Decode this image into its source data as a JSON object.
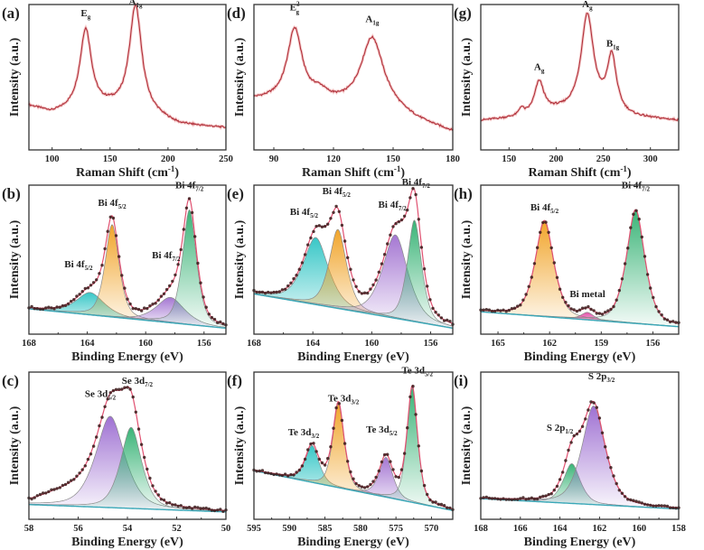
{
  "chart_data": [
    {
      "id": "a",
      "panel_label": "(a)",
      "type": "line",
      "kind": "raman",
      "xlabel": "Raman Shift (cm",
      "xlabel_sup": "-1",
      "xlabel_tail": ")",
      "ylabel": "Intensity (a.u.)",
      "xlim": [
        80,
        250
      ],
      "ylim": [
        0,
        1.0
      ],
      "reversed": false,
      "xticks": [
        100,
        150,
        200,
        250
      ],
      "baseline": [
        [
          80,
          0.3
        ],
        [
          100,
          0.25
        ],
        [
          120,
          0.27
        ],
        [
          150,
          0.28
        ],
        [
          190,
          0.22
        ],
        [
          210,
          0.17
        ],
        [
          250,
          0.15
        ]
      ],
      "peaks": [
        {
          "center": 129,
          "height": 0.55,
          "width": 6
        },
        {
          "center": 172,
          "height": 0.74,
          "width": 6.5
        }
      ],
      "labels": [
        {
          "text": "E",
          "sub": "g",
          "sup": "",
          "x": 129,
          "y": 0.92
        },
        {
          "text": "A",
          "sub": "1g",
          "sup": "",
          "x": 172,
          "y": 1.0
        }
      ]
    },
    {
      "id": "d",
      "panel_label": "(d)",
      "type": "line",
      "kind": "raman",
      "xlabel": "Raman Shift (cm",
      "xlabel_sup": "-1",
      "xlabel_tail": ")",
      "ylabel": "Intensity (a.u.)",
      "xlim": [
        80,
        180
      ],
      "ylim": [
        0,
        1.0
      ],
      "reversed": false,
      "xticks": [
        90,
        120,
        150,
        180
      ],
      "baseline": [
        [
          80,
          0.34
        ],
        [
          100,
          0.33
        ],
        [
          120,
          0.3
        ],
        [
          150,
          0.25
        ],
        [
          165,
          0.18
        ],
        [
          180,
          0.12
        ]
      ],
      "peaks": [
        {
          "center": 100.5,
          "height": 0.49,
          "width": 4.5
        },
        {
          "center": 113,
          "height": 0.06,
          "width": 5
        },
        {
          "center": 139.5,
          "height": 0.5,
          "width": 7
        }
      ],
      "labels": [
        {
          "text": "E",
          "sub": "g",
          "sup": "2",
          "x": 100.5,
          "y": 0.96
        },
        {
          "text": "A",
          "sub": "1g",
          "sup": "",
          "x": 139.5,
          "y": 0.88
        }
      ]
    },
    {
      "id": "g",
      "panel_label": "(g)",
      "type": "line",
      "kind": "raman",
      "xlabel": "Raman Shift (cm",
      "xlabel_sup": "-1",
      "xlabel_tail": ")",
      "ylabel": "Intensity (a.u.)",
      "xlim": [
        120,
        330
      ],
      "ylim": [
        0,
        1.0
      ],
      "reversed": false,
      "xticks": [
        150,
        200,
        250,
        300
      ],
      "baseline": [
        [
          120,
          0.2
        ],
        [
          160,
          0.22
        ],
        [
          200,
          0.26
        ],
        [
          240,
          0.26
        ],
        [
          280,
          0.22
        ],
        [
          330,
          0.2
        ]
      ],
      "peaks": [
        {
          "center": 163,
          "height": 0.05,
          "width": 3
        },
        {
          "center": 182,
          "height": 0.22,
          "width": 6
        },
        {
          "center": 233,
          "height": 0.66,
          "width": 8
        },
        {
          "center": 259,
          "height": 0.38,
          "width": 6
        }
      ],
      "labels": [
        {
          "text": "A",
          "sub": "g",
          "sup": "",
          "x": 182,
          "y": 0.55
        },
        {
          "text": "A",
          "sub": "g",
          "sup": "",
          "x": 233,
          "y": 0.98
        },
        {
          "text": "B",
          "sub": "1g",
          "sup": "",
          "x": 260,
          "y": 0.71
        }
      ]
    },
    {
      "id": "b",
      "panel_label": "(b)",
      "type": "area",
      "kind": "xps",
      "xlabel": "Binding Energy (eV)",
      "ylabel": "Intensity (a.u.)",
      "xlim": [
        168,
        154.5
      ],
      "ylim": [
        0,
        1.0
      ],
      "reversed": true,
      "xticks": [
        168,
        164,
        160,
        156
      ],
      "background": [
        [
          168,
          0.17
        ],
        [
          154.5,
          0.04
        ]
      ],
      "components": [
        {
          "name": "Bi 4f5/2 (minor)",
          "center": 163.8,
          "height": 0.15,
          "width": 0.9,
          "color": "#2ec4c4"
        },
        {
          "name": "Bi 4f5/2",
          "center": 162.3,
          "height": 0.62,
          "width": 0.45,
          "color": "#f0a020"
        },
        {
          "name": "Bi 4f7/2 (minor)",
          "center": 158.3,
          "height": 0.17,
          "width": 0.9,
          "color": "#a070d0"
        },
        {
          "name": "Bi 4f7/2",
          "center": 157.0,
          "height": 0.77,
          "width": 0.45,
          "color": "#30b070"
        }
      ],
      "labels": [
        {
          "text": "Bi 4f",
          "sub": "5/2",
          "sup": "",
          "x": 164.6,
          "y": 0.45
        },
        {
          "text": "Bi 4f",
          "sub": "5/2",
          "sup": "",
          "x": 162.3,
          "y": 0.86
        },
        {
          "text": "Bi 4f",
          "sub": "7/2",
          "sup": "",
          "x": 158.6,
          "y": 0.51
        },
        {
          "text": "Bi 4f",
          "sub": "7/2",
          "sup": "",
          "x": 157.0,
          "y": 0.98
        }
      ]
    },
    {
      "id": "e",
      "panel_label": "(e)",
      "type": "area",
      "kind": "xps",
      "xlabel": "Binding Energy (eV)",
      "ylabel": "Intensity (a.u.)",
      "xlim": [
        168,
        154.5
      ],
      "ylim": [
        0,
        1.0
      ],
      "reversed": true,
      "xticks": [
        168,
        164,
        160,
        156
      ],
      "background": [
        [
          168,
          0.27
        ],
        [
          154.5,
          0.04
        ]
      ],
      "components": [
        {
          "name": "Bi 4f5/2 (minor)",
          "center": 163.8,
          "height": 0.45,
          "width": 0.8,
          "color": "#2ec4c4"
        },
        {
          "name": "Bi 4f5/2",
          "center": 162.3,
          "height": 0.53,
          "width": 0.55,
          "color": "#f0a020"
        },
        {
          "name": "Bi 4f7/2 (minor)",
          "center": 158.4,
          "height": 0.56,
          "width": 0.8,
          "color": "#a070d0"
        },
        {
          "name": "Bi 4f7/2",
          "center": 157.1,
          "height": 0.68,
          "width": 0.45,
          "color": "#30b070"
        }
      ],
      "labels": [
        {
          "text": "Bi 4f",
          "sub": "5/2",
          "sup": "",
          "x": 164.6,
          "y": 0.8
        },
        {
          "text": "Bi 4f",
          "sub": "5/2",
          "sup": "",
          "x": 162.4,
          "y": 0.94
        },
        {
          "text": "Bi 4f",
          "sub": "7/2",
          "sup": "",
          "x": 158.6,
          "y": 0.85
        },
        {
          "text": "Bi 4f",
          "sub": "7/2",
          "sup": "",
          "x": 157.0,
          "y": 1.0
        }
      ]
    },
    {
      "id": "h",
      "panel_label": "(h)",
      "type": "area",
      "kind": "xps",
      "xlabel": "Binding Energy (eV)",
      "ylabel": "Intensity (a.u.)",
      "xlim": [
        166,
        154.5
      ],
      "ylim": [
        0,
        1.0
      ],
      "reversed": true,
      "xticks": [
        165,
        162,
        159,
        156
      ],
      "background": [
        [
          166,
          0.15
        ],
        [
          154.5,
          0.05
        ]
      ],
      "components": [
        {
          "name": "Bi 4f5/2",
          "center": 162.3,
          "height": 0.64,
          "width": 0.5,
          "color": "#f0a020"
        },
        {
          "name": "Bi metal",
          "center": 159.8,
          "height": 0.05,
          "width": 0.35,
          "color": "#e040a0"
        },
        {
          "name": "Bi 4f7/2",
          "center": 157.0,
          "height": 0.76,
          "width": 0.5,
          "color": "#30b070"
        }
      ],
      "labels": [
        {
          "text": "Bi 4f",
          "sub": "5/2",
          "sup": "",
          "x": 162.3,
          "y": 0.83
        },
        {
          "text": "Bi metal",
          "sub": "",
          "sup": "",
          "x": 159.8,
          "y": 0.25
        },
        {
          "text": "Bi 4f",
          "sub": "7/2",
          "sup": "",
          "x": 157.0,
          "y": 0.98
        }
      ]
    },
    {
      "id": "c",
      "panel_label": "(c)",
      "type": "area",
      "kind": "xps",
      "xlabel": "Binding Energy (eV)",
      "ylabel": "Intensity (a.u.)",
      "xlim": [
        58,
        50
      ],
      "ylim": [
        0,
        1.0
      ],
      "reversed": true,
      "xticks": [
        58,
        56,
        54,
        52,
        50
      ],
      "background": [
        [
          58,
          0.1
        ],
        [
          50,
          0.05
        ]
      ],
      "components": [
        {
          "name": "Se 3d5/2",
          "center": 54.7,
          "height": 0.62,
          "width": 0.55,
          "color": "#9a6ad0"
        },
        {
          "name": "Se 3d7/2",
          "center": 53.85,
          "height": 0.55,
          "width": 0.4,
          "color": "#30b070"
        }
      ],
      "tail": {
        "center": 56.2,
        "height": 0.1,
        "width": 1.1
      },
      "labels": [
        {
          "text": "Se 3d",
          "sub": "5/2",
          "sup": "",
          "x": 55.1,
          "y": 0.83
        },
        {
          "text": "Se 3d",
          "sub": "7/2",
          "sup": "",
          "x": 53.6,
          "y": 0.92
        }
      ]
    },
    {
      "id": "f",
      "panel_label": "(f)",
      "type": "area",
      "kind": "xps",
      "xlabel": "Binding Energy (eV)",
      "ylabel": "Intensity (a.u.)",
      "xlim": [
        595,
        567
      ],
      "ylim": [
        0,
        1.0
      ],
      "reversed": true,
      "xticks": [
        595,
        590,
        585,
        580,
        575,
        570
      ],
      "background": [
        [
          595,
          0.33
        ],
        [
          567,
          0.06
        ]
      ],
      "components": [
        {
          "name": "Te 3d3/2 (oxide)",
          "center": 586.8,
          "height": 0.25,
          "width": 0.9,
          "color": "#2ec4c4"
        },
        {
          "name": "Te 3d3/2",
          "center": 583.1,
          "height": 0.57,
          "width": 0.75,
          "color": "#f0a020"
        },
        {
          "name": "Te 3d5/2 (oxide)",
          "center": 576.4,
          "height": 0.27,
          "width": 0.9,
          "color": "#a070d0"
        },
        {
          "name": "Te 3d5/2",
          "center": 572.7,
          "height": 0.78,
          "width": 0.7,
          "color": "#30b070"
        }
      ],
      "labels": [
        {
          "text": "Te 3d",
          "sub": "3/2",
          "sup": "",
          "x": 588.0,
          "y": 0.57
        },
        {
          "text": "Te 3d",
          "sub": "3/2",
          "sup": "",
          "x": 582.4,
          "y": 0.8
        },
        {
          "text": "Te 3d",
          "sub": "5/2",
          "sup": "",
          "x": 577.0,
          "y": 0.59
        },
        {
          "text": "Te 3d",
          "sub": "5/2",
          "sup": "",
          "x": 572.0,
          "y": 0.99
        }
      ]
    },
    {
      "id": "i",
      "panel_label": "(i)",
      "type": "area",
      "kind": "xps",
      "xlabel": "Binding Energy (eV)",
      "ylabel": "Intensity (a.u.)",
      "xlim": [
        168,
        158
      ],
      "ylim": [
        0,
        1.0
      ],
      "reversed": true,
      "xticks": [
        168,
        166,
        164,
        162,
        160,
        158
      ],
      "background": [
        [
          168,
          0.14
        ],
        [
          158,
          0.07
        ]
      ],
      "components": [
        {
          "name": "S 2p1/2",
          "center": 163.4,
          "height": 0.27,
          "width": 0.4,
          "color": "#30b070"
        },
        {
          "name": "S 2p3/2",
          "center": 162.3,
          "height": 0.67,
          "width": 0.55,
          "color": "#9a6ad0"
        }
      ],
      "labels": [
        {
          "text": "S 2p",
          "sub": "1/2",
          "sup": "",
          "x": 164.0,
          "y": 0.6
        },
        {
          "text": "S 2p",
          "sub": "3/2",
          "sup": "",
          "x": 161.9,
          "y": 0.95
        }
      ]
    }
  ]
}
